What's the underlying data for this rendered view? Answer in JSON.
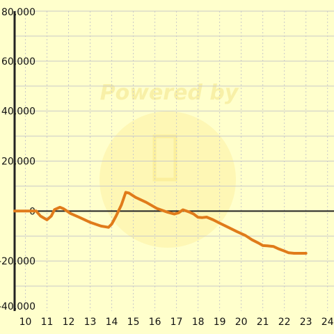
{
  "chart_data": {
    "type": "line",
    "title": "",
    "xlabel": "",
    "ylabel": "",
    "xlim": [
      9.5,
      24.3
    ],
    "ylim": [
      -40000,
      80000
    ],
    "x_ticks": [
      "10",
      "11",
      "12",
      "13",
      "14",
      "15",
      "16",
      "17",
      "18",
      "19",
      "20",
      "21",
      "22",
      "23",
      "24"
    ],
    "y_ticks": [
      "80,000",
      "60,000",
      "40,000",
      "20,000",
      "0",
      "-20,000",
      "-40,000"
    ],
    "grid": true,
    "legend": "none",
    "series": [
      {
        "color": "#e07b1a",
        "x": [
          9.5,
          10.5,
          10.7,
          11.0,
          11.2,
          11.35,
          11.6,
          11.75,
          12.1,
          12.5,
          13.0,
          13.5,
          13.85,
          14.0,
          14.2,
          14.45,
          14.65,
          14.8,
          15.1,
          15.6,
          16.1,
          16.6,
          16.9,
          17.1,
          17.3,
          17.6,
          17.8,
          18.0,
          18.2,
          18.4,
          18.7,
          19.0,
          19.4,
          19.8,
          20.2,
          20.5,
          20.8,
          21.0,
          21.2,
          21.5,
          21.7,
          22.0,
          22.2,
          22.45,
          23.0
        ],
        "y": [
          0,
          0,
          -2000,
          -3500,
          -2000,
          600,
          1500,
          1000,
          -1000,
          -2500,
          -4500,
          -6000,
          -6500,
          -5200,
          -2000,
          2500,
          7500,
          7200,
          5500,
          3500,
          1000,
          -500,
          -1200,
          -700,
          500,
          -400,
          -1200,
          -2500,
          -2600,
          -2400,
          -3500,
          -4800,
          -6500,
          -8200,
          -9800,
          -11500,
          -12800,
          -13800,
          -13900,
          -14200,
          -15000,
          -16000,
          -16700,
          -16900,
          -16900
        ]
      }
    ]
  },
  "watermark": {
    "text": "Powered by"
  },
  "colors": {
    "background": "#ffffcc",
    "grid": "#c9c9c9",
    "axis": "#222222",
    "line": "#e07b1a"
  }
}
